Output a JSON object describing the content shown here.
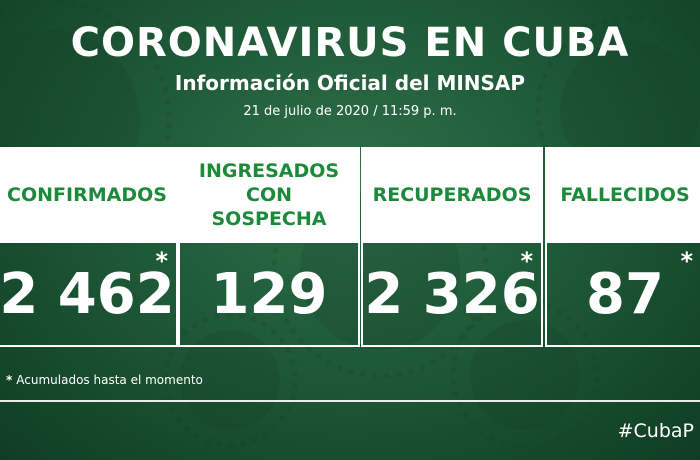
{
  "header": {
    "title": "CORONAVIRUS EN CUBA",
    "subtitle": "Información Oficial del MINSAP",
    "date": "21 de julio de 2020 / 11:59 p. m."
  },
  "cards": [
    {
      "label": "CONFIRMADOS",
      "value": "2 462",
      "asterisk": "*"
    },
    {
      "label": "INGRESADOS CON SOSPECHA",
      "value": "129",
      "asterisk": ""
    },
    {
      "label": "RECUPERADOS",
      "value": "2 326",
      "asterisk": "*"
    },
    {
      "label": "FALLECIDOS",
      "value": "87",
      "asterisk": "*"
    }
  ],
  "footer": {
    "note_asterisk": "*",
    "note": "Acumulados hasta el momento",
    "hashtag": "#CubaP"
  },
  "colors": {
    "background": "#1f5a38",
    "label_text": "#1c8a3a",
    "card_bg": "#ffffff"
  }
}
